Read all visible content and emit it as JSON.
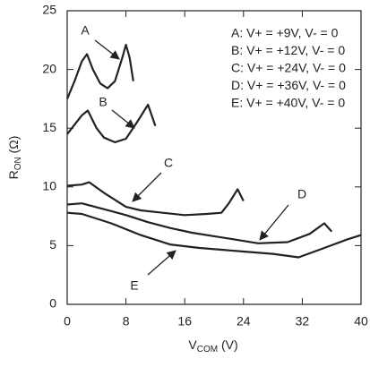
{
  "chart_data": {
    "type": "line",
    "y_label": {
      "main": "R",
      "sub": "ON",
      "suffix": " (Ω)"
    },
    "x_label": {
      "main": "V",
      "sub": "COM",
      "suffix": " (V)"
    },
    "xlim": [
      0,
      40
    ],
    "xticks": [
      0,
      8,
      16,
      24,
      32,
      40
    ],
    "ylim": [
      0,
      25
    ],
    "yticks": [
      0,
      5,
      10,
      15,
      20,
      25
    ],
    "series": [
      {
        "name": "A: V+ = +9V, V- = 0",
        "color": "#222222",
        "x": [
          0,
          1,
          2,
          2.7,
          3.5,
          4.5,
          5.5,
          6.5,
          7.5,
          8,
          8.5,
          9
        ],
        "values": [
          17.5,
          19,
          20.7,
          21.3,
          20,
          18.8,
          18.4,
          19,
          21,
          22.1,
          21,
          19
        ]
      },
      {
        "name": "B: V+ = +12V, V- = 0",
        "color": "#222222",
        "x": [
          0,
          1,
          2,
          2.8,
          4,
          5,
          6.5,
          8,
          9.5,
          11,
          12
        ],
        "values": [
          14.5,
          15.3,
          16.1,
          16.5,
          15,
          14.2,
          13.8,
          14.1,
          15.5,
          17,
          15.2
        ]
      },
      {
        "name": "C: V+ = +24V, V- = 0",
        "color": "#222222",
        "x": [
          0,
          2,
          3,
          5,
          8,
          10,
          13,
          16,
          19,
          21,
          22,
          23.2,
          24
        ],
        "values": [
          10.1,
          10.2,
          10.4,
          9.5,
          8.3,
          8,
          7.8,
          7.6,
          7.7,
          7.8,
          8.6,
          9.8,
          8.8
        ]
      },
      {
        "name": "D: V+ = +36V, V- = 0",
        "color": "#222222",
        "x": [
          0,
          2,
          5,
          8,
          11,
          14,
          17,
          20,
          23,
          26,
          30,
          33,
          35,
          36
        ],
        "values": [
          8.5,
          8.6,
          8.1,
          7.6,
          7,
          6.5,
          6.1,
          5.8,
          5.5,
          5.2,
          5.3,
          6,
          6.9,
          6.2
        ]
      },
      {
        "name": "E: V+ = +40V, V- = 0",
        "color": "#222222",
        "x": [
          0,
          2,
          6,
          10,
          14,
          18,
          24,
          28,
          31.5,
          35,
          38,
          40
        ],
        "values": [
          7.8,
          7.7,
          6.9,
          5.9,
          5.1,
          4.8,
          4.5,
          4.3,
          4.0,
          4.8,
          5.5,
          5.9
        ]
      }
    ],
    "annotations": [
      "A",
      "B",
      "C",
      "D",
      "E"
    ]
  }
}
